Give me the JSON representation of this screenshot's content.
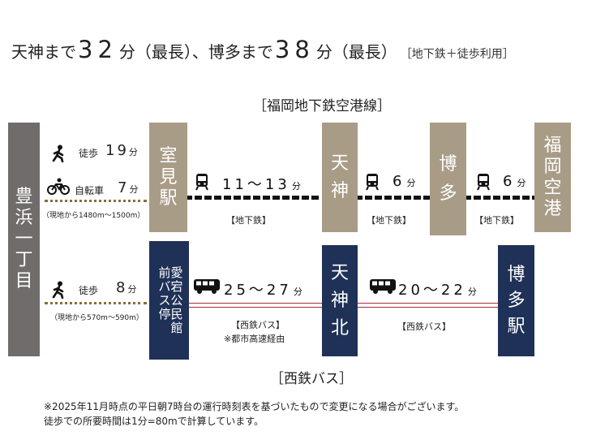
{
  "headline": {
    "part1": "天神まで",
    "num1": "32",
    "part2": "分（最長）、博多まで",
    "num2": "38",
    "part3": "分（最長）",
    "note": "［地下鉄＋徒歩利用］"
  },
  "subway_line_title": "［福岡地下鉄空港線］",
  "bus_line_title": "［西鉄バス］",
  "origin": {
    "name": "豊浜一丁目"
  },
  "stations": {
    "muromi": "室見駅",
    "tenjin": "天神",
    "hakata": "博多",
    "fukuoka_airport": "福岡空港",
    "atago_bus_stop": "愛宕公民館前バス停",
    "tenjin_kita": "天神北",
    "hakata_eki": "博多駅"
  },
  "access": {
    "walk_label": "徒歩",
    "walk_time": "19",
    "bike_label": "自転車",
    "bike_time": "7",
    "unit": "分",
    "distance_to_muromi": "（現地から1480m〜1500m）",
    "bus_walk_label": "徒歩",
    "bus_walk_time": "8",
    "distance_to_bus_stop": "（現地から570m〜590m）"
  },
  "segments": {
    "muromi_tenjin": {
      "time": "11〜13",
      "unit": "分",
      "label": "【地下鉄】"
    },
    "tenjin_hakata": {
      "time": "6",
      "unit": "分",
      "label": "【地下鉄】"
    },
    "hakata_airport": {
      "time": "6",
      "unit": "分",
      "label": "【地下鉄】"
    },
    "bus_stop_tenjinkita": {
      "time": "25〜27",
      "unit": "分",
      "label": "【西鉄バス】",
      "sublabel": "※都市高速経由"
    },
    "tenjinkita_hakata": {
      "time": "20〜22",
      "unit": "分",
      "label": "【西鉄バス】"
    }
  },
  "footnotes": [
    "※2025年11月時点の平日朝7時台の運行時刻表を基づいたもので変更になる場合がございます。",
    "徒歩での所要時間は1分=80mで計算しています。"
  ],
  "colors": {
    "station_tan": "#a99c87",
    "station_navy": "#1f3157",
    "origin_gray": "#706c6c",
    "bus_line": "#b0283a"
  }
}
